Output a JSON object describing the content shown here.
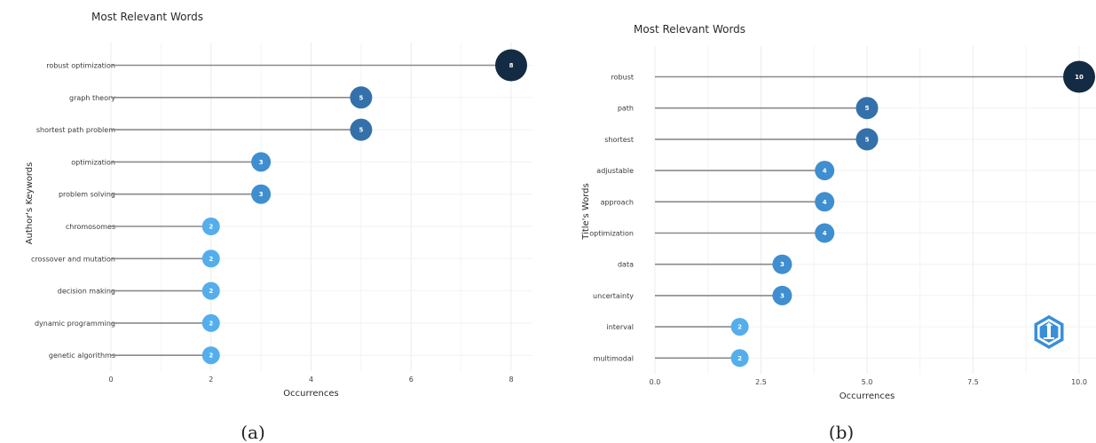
{
  "panel_labels": [
    "(a)",
    "(b)"
  ],
  "colors": {
    "low": "#54aeec",
    "mid": "#3f8ed0",
    "high": "#3471ab",
    "max": "#132b43",
    "stem": "#8a8a8a",
    "grid": "#ececec"
  },
  "chart_data": [
    {
      "type": "lollipop",
      "title": "Most Relevant Words",
      "xlabel": "Occurrences",
      "ylabel": "Author's Keywords",
      "categories": [
        "robust optimization",
        "graph theory",
        "shortest path problem",
        "optimization",
        "problem solving",
        "chromosomes",
        "crossover and mutation",
        "decision making",
        "dynamic programming",
        "genetic algorithms"
      ],
      "values": [
        8,
        5,
        5,
        3,
        3,
        2,
        2,
        2,
        2,
        2
      ],
      "value_labels": [
        "8",
        "5",
        "5",
        "3",
        "3",
        "2",
        "2",
        "2",
        "2",
        "2"
      ],
      "xlim": [
        0,
        8
      ],
      "xticks": [
        0,
        2,
        4,
        6,
        8
      ],
      "xtick_labels": [
        "0",
        "2",
        "4",
        "6",
        "8"
      ],
      "grid": true,
      "legend": "none"
    },
    {
      "type": "lollipop",
      "title": "Most Relevant Words",
      "xlabel": "Occurrences",
      "ylabel": "Title's Words",
      "categories": [
        "robust",
        "path",
        "shortest",
        "adjustable",
        "approach",
        "optimization",
        "data",
        "uncertainty",
        "interval",
        "multimodal"
      ],
      "values": [
        10,
        5,
        5,
        4,
        4,
        4,
        3,
        3,
        2,
        2
      ],
      "value_labels": [
        "10",
        "5",
        "5",
        "4",
        "4",
        "4",
        "3",
        "3",
        "2",
        "2"
      ],
      "xlim": [
        0,
        10
      ],
      "xticks": [
        0,
        2.5,
        5,
        7.5,
        10
      ],
      "xtick_labels": [
        "0.0",
        "2.5",
        "5.0",
        "7.5",
        "10.0"
      ],
      "grid": true,
      "legend": "none"
    }
  ]
}
